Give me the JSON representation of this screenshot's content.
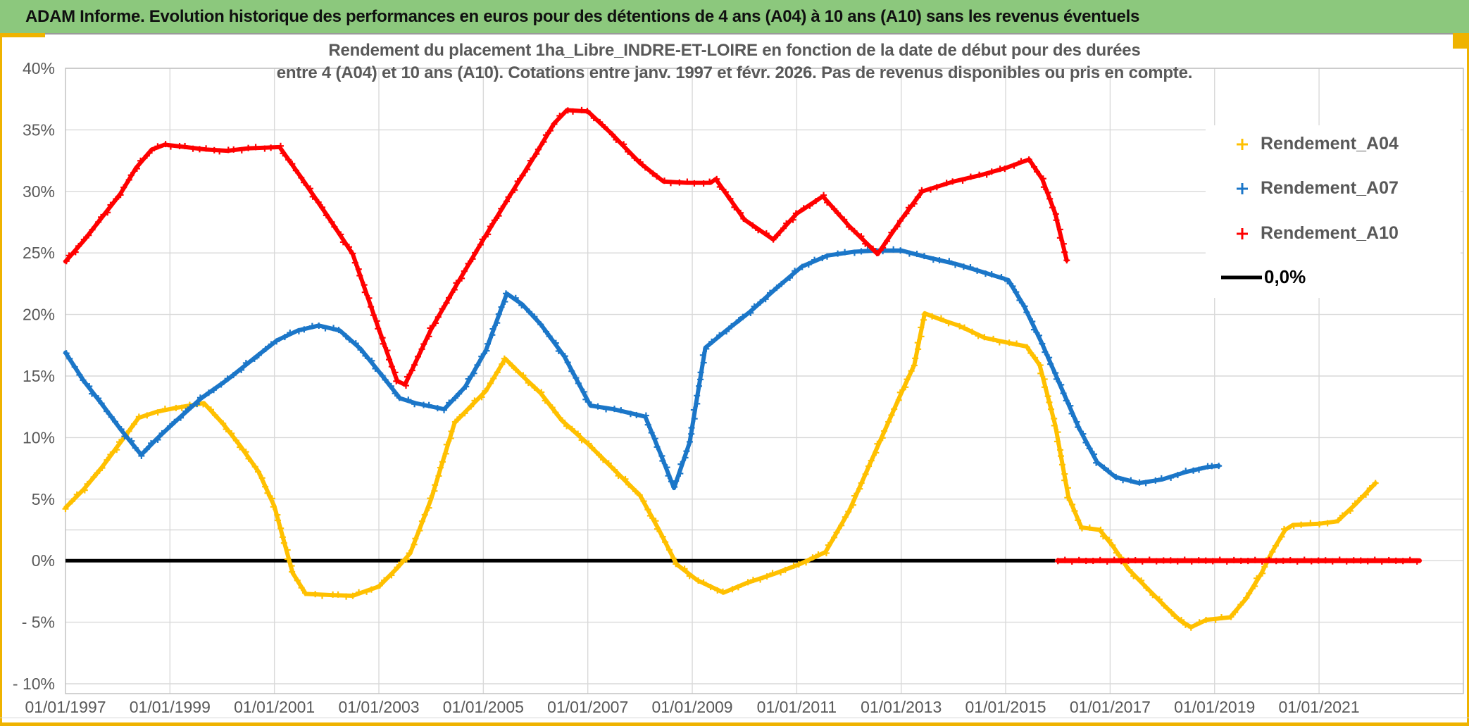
{
  "header": {
    "title": "ADAM Informe. Evolution historique des performances en euros pour des détentions de 4 ans (A04) à 10 ans (A10) sans les revenus éventuels",
    "bg_color": "#8CC87D"
  },
  "chart_data": {
    "type": "line",
    "title_line1": "Rendement du placement 1ha_Libre_INDRE-ET-LOIRE en fonction de la date de début pour des durées",
    "title_line2": "entre 4 (A04) et 10 ans (A10). Cotations entre janv. 1997 et févr. 2026. Pas de revenus disponibles ou pris en compte.",
    "xlabel": "",
    "ylabel": "",
    "ylim": [
      -10,
      40
    ],
    "grid": true,
    "extra_gridline_value": 2.5,
    "legend_position": "right",
    "y_ticks": [
      {
        "v": 40,
        "label": "40%"
      },
      {
        "v": 35,
        "label": "35%"
      },
      {
        "v": 30,
        "label": "30%"
      },
      {
        "v": 25,
        "label": "25%"
      },
      {
        "v": 20,
        "label": "20%"
      },
      {
        "v": 15,
        "label": "15%"
      },
      {
        "v": 10,
        "label": "10%"
      },
      {
        "v": 5,
        "label": "5%"
      },
      {
        "v": 0,
        "label": "0%"
      },
      {
        "v": -5,
        "label": "- 5%"
      },
      {
        "v": -10,
        "label": "- 10%"
      }
    ],
    "x_ticks": [
      {
        "year": 1997,
        "label": "01/01/1997"
      },
      {
        "year": 1999,
        "label": "01/01/1999"
      },
      {
        "year": 2001,
        "label": "01/01/2001"
      },
      {
        "year": 2003,
        "label": "01/01/2003"
      },
      {
        "year": 2005,
        "label": "01/01/2005"
      },
      {
        "year": 2007,
        "label": "01/01/2007"
      },
      {
        "year": 2009,
        "label": "01/01/2009"
      },
      {
        "year": 2011,
        "label": "01/01/2011"
      },
      {
        "year": 2013,
        "label": "01/01/2013"
      },
      {
        "year": 2015,
        "label": "01/01/2015"
      },
      {
        "year": 2017,
        "label": "01/01/2017"
      },
      {
        "year": 2019,
        "label": "01/01/2019"
      },
      {
        "year": 2021,
        "label": "01/01/2021"
      }
    ],
    "series": [
      {
        "name": "Rendement_A04",
        "color": "#FFC000",
        "marker": "+",
        "points": [
          [
            1997.0,
            4.3
          ],
          [
            1997.35,
            5.8
          ],
          [
            1997.7,
            7.6
          ],
          [
            1998.05,
            9.6
          ],
          [
            1998.4,
            11.6
          ],
          [
            1998.75,
            12.1
          ],
          [
            1999.1,
            12.4
          ],
          [
            1999.65,
            12.8
          ],
          [
            2000.0,
            11.2
          ],
          [
            2000.35,
            9.3
          ],
          [
            2000.7,
            7.2
          ],
          [
            2001.0,
            4.4
          ],
          [
            2001.35,
            -1.0
          ],
          [
            2001.6,
            -2.7
          ],
          [
            2002.1,
            -2.8
          ],
          [
            2002.5,
            -2.85
          ],
          [
            2003.0,
            -2.1
          ],
          [
            2003.35,
            -0.6
          ],
          [
            2003.6,
            0.6
          ],
          [
            2004.0,
            5.0
          ],
          [
            2004.45,
            11.2
          ],
          [
            2004.75,
            12.5
          ],
          [
            2005.05,
            13.8
          ],
          [
            2005.42,
            16.4
          ],
          [
            2005.75,
            15.0
          ],
          [
            2006.1,
            13.6
          ],
          [
            2006.5,
            11.4
          ],
          [
            2007.0,
            9.5
          ],
          [
            2007.5,
            7.4
          ],
          [
            2008.0,
            5.3
          ],
          [
            2008.35,
            2.6
          ],
          [
            2008.7,
            -0.3
          ],
          [
            2009.1,
            -1.6
          ],
          [
            2009.6,
            -2.6
          ],
          [
            2010.05,
            -1.8
          ],
          [
            2010.55,
            -1.1
          ],
          [
            2011.05,
            -0.3
          ],
          [
            2011.55,
            0.7
          ],
          [
            2012.0,
            4.0
          ],
          [
            2012.5,
            8.8
          ],
          [
            2013.0,
            13.6
          ],
          [
            2013.25,
            15.9
          ],
          [
            2013.45,
            20.1
          ],
          [
            2013.75,
            19.6
          ],
          [
            2014.1,
            19.1
          ],
          [
            2014.6,
            18.1
          ],
          [
            2015.05,
            17.7
          ],
          [
            2015.4,
            17.4
          ],
          [
            2015.65,
            15.9
          ],
          [
            2015.95,
            11.0
          ],
          [
            2016.2,
            5.2
          ],
          [
            2016.45,
            2.7
          ],
          [
            2016.8,
            2.5
          ],
          [
            2017.05,
            1.2
          ],
          [
            2017.35,
            -0.7
          ],
          [
            2017.7,
            -2.2
          ],
          [
            2018.05,
            -3.7
          ],
          [
            2018.35,
            -4.9
          ],
          [
            2018.55,
            -5.4
          ],
          [
            2018.85,
            -4.8
          ],
          [
            2019.3,
            -4.6
          ],
          [
            2019.6,
            -3.1
          ],
          [
            2019.9,
            -1.0
          ],
          [
            2020.1,
            0.7
          ],
          [
            2020.35,
            2.5
          ],
          [
            2020.5,
            2.9
          ],
          [
            2021.0,
            3.0
          ],
          [
            2021.35,
            3.2
          ],
          [
            2021.7,
            4.6
          ],
          [
            2022.08,
            6.3
          ]
        ]
      },
      {
        "name": "Rendement_A07",
        "color": "#1B76C8",
        "marker": "+",
        "points": [
          [
            1997.0,
            16.9
          ],
          [
            1997.35,
            14.6
          ],
          [
            1997.7,
            12.7
          ],
          [
            1998.05,
            10.7
          ],
          [
            1998.45,
            8.6
          ],
          [
            1998.75,
            9.9
          ],
          [
            1999.1,
            11.3
          ],
          [
            1999.6,
            13.2
          ],
          [
            2000.1,
            14.7
          ],
          [
            2000.6,
            16.4
          ],
          [
            2001.05,
            17.9
          ],
          [
            2001.45,
            18.7
          ],
          [
            2001.85,
            19.1
          ],
          [
            2002.25,
            18.7
          ],
          [
            2002.65,
            17.2
          ],
          [
            2003.05,
            15.1
          ],
          [
            2003.4,
            13.2
          ],
          [
            2003.7,
            12.8
          ],
          [
            2004.25,
            12.3
          ],
          [
            2004.65,
            14.1
          ],
          [
            2005.05,
            17.1
          ],
          [
            2005.45,
            21.7
          ],
          [
            2005.75,
            20.8
          ],
          [
            2006.1,
            19.2
          ],
          [
            2006.55,
            16.6
          ],
          [
            2007.05,
            12.6
          ],
          [
            2007.5,
            12.3
          ],
          [
            2008.1,
            11.7
          ],
          [
            2008.4,
            8.6
          ],
          [
            2008.65,
            5.9
          ],
          [
            2008.95,
            9.6
          ],
          [
            2009.25,
            17.3
          ],
          [
            2009.65,
            18.7
          ],
          [
            2010.1,
            20.2
          ],
          [
            2010.6,
            22.1
          ],
          [
            2011.1,
            23.9
          ],
          [
            2011.6,
            24.8
          ],
          [
            2012.1,
            25.1
          ],
          [
            2012.5,
            25.2
          ],
          [
            2013.0,
            25.2
          ],
          [
            2013.45,
            24.7
          ],
          [
            2014.05,
            24.1
          ],
          [
            2014.6,
            23.4
          ],
          [
            2015.05,
            22.8
          ],
          [
            2015.35,
            20.7
          ],
          [
            2015.7,
            17.6
          ],
          [
            2016.05,
            14.2
          ],
          [
            2016.4,
            10.8
          ],
          [
            2016.75,
            8.0
          ],
          [
            2017.1,
            6.8
          ],
          [
            2017.55,
            6.3
          ],
          [
            2018.0,
            6.6
          ],
          [
            2018.45,
            7.2
          ],
          [
            2018.85,
            7.6
          ],
          [
            2019.08,
            7.7
          ]
        ]
      },
      {
        "name": "Rendement_A10",
        "color": "#FF0000",
        "marker": "+",
        "points": [
          [
            1997.0,
            24.3
          ],
          [
            1997.35,
            26.0
          ],
          [
            1997.7,
            27.9
          ],
          [
            1998.05,
            29.8
          ],
          [
            1998.35,
            31.9
          ],
          [
            1998.65,
            33.4
          ],
          [
            1998.9,
            33.8
          ],
          [
            1999.3,
            33.6
          ],
          [
            1999.7,
            33.4
          ],
          [
            2000.1,
            33.3
          ],
          [
            2000.5,
            33.5
          ],
          [
            2001.1,
            33.6
          ],
          [
            2001.5,
            31.2
          ],
          [
            2002.0,
            28.1
          ],
          [
            2002.5,
            24.9
          ],
          [
            2003.0,
            18.8
          ],
          [
            2003.35,
            14.6
          ],
          [
            2003.5,
            14.3
          ],
          [
            2004.0,
            18.8
          ],
          [
            2004.5,
            22.5
          ],
          [
            2005.0,
            26.1
          ],
          [
            2005.5,
            29.6
          ],
          [
            2006.0,
            33.0
          ],
          [
            2006.35,
            35.5
          ],
          [
            2006.6,
            36.6
          ],
          [
            2007.0,
            36.5
          ],
          [
            2007.45,
            34.7
          ],
          [
            2008.0,
            32.3
          ],
          [
            2008.45,
            30.8
          ],
          [
            2008.9,
            30.7
          ],
          [
            2009.35,
            30.7
          ],
          [
            2009.45,
            31.0
          ],
          [
            2010.0,
            27.7
          ],
          [
            2010.55,
            26.1
          ],
          [
            2011.0,
            28.2
          ],
          [
            2011.5,
            29.6
          ],
          [
            2012.0,
            27.2
          ],
          [
            2012.55,
            24.9
          ],
          [
            2013.0,
            27.7
          ],
          [
            2013.4,
            30.0
          ],
          [
            2014.0,
            30.8
          ],
          [
            2014.5,
            31.3
          ],
          [
            2015.0,
            31.9
          ],
          [
            2015.45,
            32.6
          ],
          [
            2015.7,
            31.0
          ],
          [
            2015.95,
            28.2
          ],
          [
            2016.17,
            24.4
          ]
        ]
      }
    ],
    "zero_line": {
      "label": "0,0%",
      "color": "#000000",
      "from_year": 1997.0,
      "to_year": 2015.95
    },
    "zero_line_red": {
      "color": "#FF0000",
      "value": 0,
      "from_year": 2016.0,
      "to_year": 2022.92
    },
    "legend": [
      {
        "label": "Rendement_A04",
        "color": "#FFC000",
        "marker": "+"
      },
      {
        "label": "Rendement_A07",
        "color": "#1B76C8",
        "marker": "+"
      },
      {
        "label": "Rendement_A10",
        "color": "#FF0000",
        "marker": "+"
      },
      {
        "label": "0,0%",
        "color": "#000000",
        "marker": "line"
      }
    ],
    "accent_colors": {
      "frame_gold": "#EFB300",
      "grid": "#D9D9D9",
      "plot_border": "#BFBFBF",
      "text_gray": "#595959"
    }
  }
}
